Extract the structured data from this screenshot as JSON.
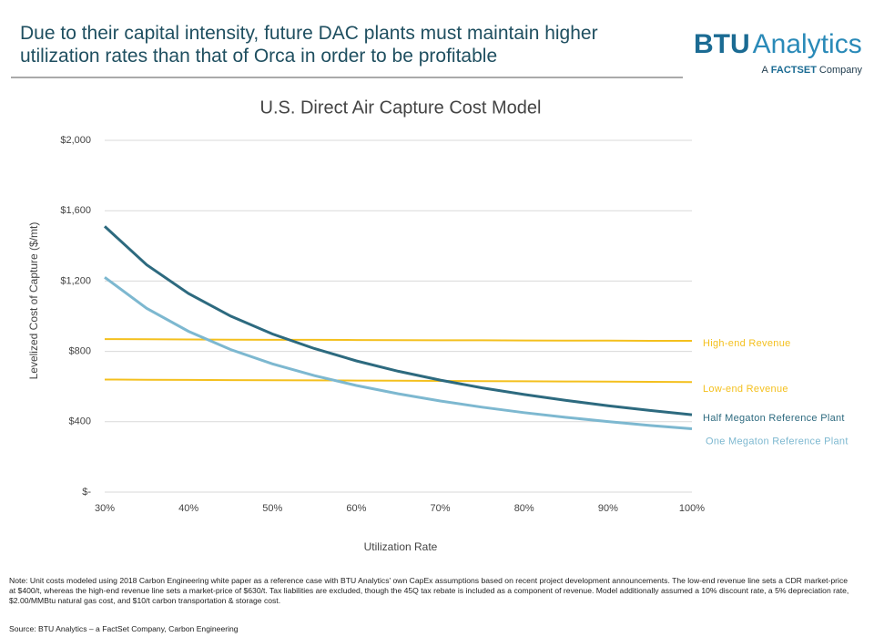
{
  "header": {
    "title": "Due to their capital intensity, future DAC plants must maintain higher utilization rates than that of Orca in order to be profitable"
  },
  "logo": {
    "brand": "BTU",
    "name": "Analytics",
    "tagline_prefix": "A",
    "tagline_brand": "FACTSET",
    "tagline_suffix": "Company"
  },
  "chart_data": {
    "type": "line",
    "title": "U.S. Direct Air Capture Cost Model",
    "x_label": "Utilization Rate",
    "y_label": "Levelized Cost of Capture ($/mt)",
    "x": [
      30,
      35,
      40,
      45,
      50,
      55,
      60,
      65,
      70,
      75,
      80,
      85,
      90,
      95,
      100
    ],
    "series": [
      {
        "name": "High-end Revenue",
        "color": "#f4c01e",
        "values": [
          870,
          869,
          868,
          867,
          866,
          866,
          865,
          864,
          863,
          863,
          862,
          861,
          861,
          860,
          860
        ]
      },
      {
        "name": "Low-end Revenue",
        "color": "#f4c01e",
        "values": [
          640,
          639,
          638,
          637,
          636,
          635,
          634,
          633,
          632,
          631,
          630,
          629,
          628,
          627,
          626
        ]
      },
      {
        "name": "Half Megaton Reference Plant",
        "color": "#2d6a7f",
        "values": [
          1511,
          1292,
          1129,
          1001,
          899,
          816,
          746,
          687,
          637,
          593,
          555,
          521,
          491,
          464,
          440
        ]
      },
      {
        "name": "One Megaton Reference Plant",
        "color": "#7db8d0",
        "values": [
          1221,
          1045,
          914,
          811,
          729,
          662,
          606,
          559,
          518,
          483,
          452,
          425,
          401,
          379,
          360
        ]
      }
    ],
    "xlim": [
      30,
      100
    ],
    "xticks": [
      {
        "value": 30,
        "label": "30%"
      },
      {
        "value": 40,
        "label": "40%"
      },
      {
        "value": 50,
        "label": "50%"
      },
      {
        "value": 60,
        "label": "60%"
      },
      {
        "value": 70,
        "label": "70%"
      },
      {
        "value": 80,
        "label": "80%"
      },
      {
        "value": 90,
        "label": "90%"
      },
      {
        "value": 100,
        "label": "100%"
      }
    ],
    "ylim": [
      0,
      2000
    ],
    "yticks": [
      {
        "value": 0,
        "label": "$-"
      },
      {
        "value": 400,
        "label": "$400"
      },
      {
        "value": 800,
        "label": "$800"
      },
      {
        "value": 1200,
        "label": "$1,200"
      },
      {
        "value": 1600,
        "label": "$1,600"
      },
      {
        "value": 2000,
        "label": "$2,000"
      }
    ],
    "grid": true
  },
  "note": "Note: Unit costs modeled using 2018 Carbon Engineering white paper as a reference case with BTU Analytics' own CapEx assumptions based on recent project development announcements. The low-end revenue line sets a CDR market-price at $400/t, whereas the high-end revenue line sets a market-price of $630/t. Tax liabilities are excluded, though the 45Q tax rebate is included as a component of revenue. Model additionally assumed a 10% discount rate, a 5% depreciation rate, $2.00/MMBtu natural gas cost, and $10/t carbon transportation & storage cost.",
  "source": "Source: BTU Analytics – a FactSet Company, Carbon Engineering"
}
